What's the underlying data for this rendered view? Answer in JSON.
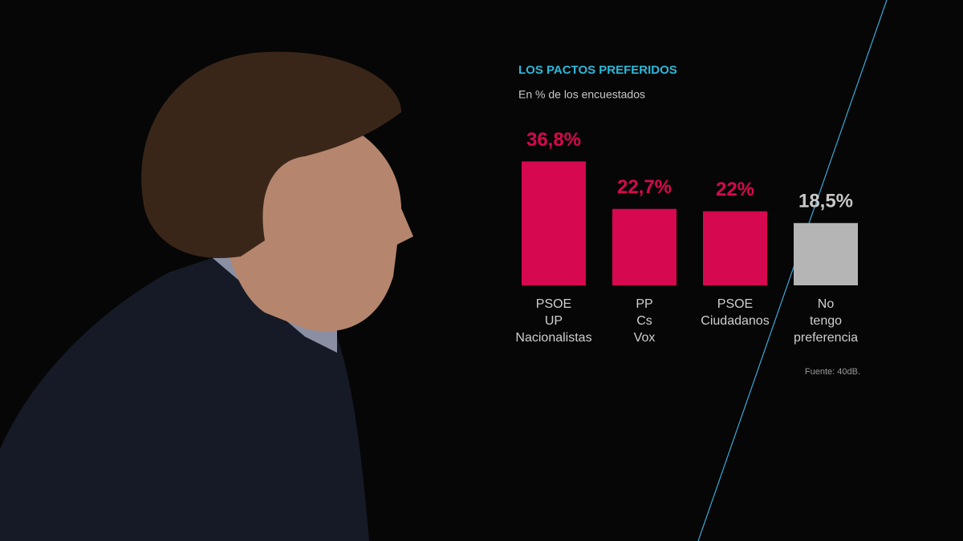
{
  "chart_data": {
    "type": "bar",
    "title": "LOS PACTOS PREFERIDOS",
    "subtitle": "En % de los encuestados",
    "categories": [
      [
        "PSOE",
        "UP",
        "Nacionalistas"
      ],
      [
        "PP",
        "Cs",
        "Vox"
      ],
      [
        "PSOE",
        "Ciudadanos"
      ],
      [
        "No",
        "tengo",
        "preferencia"
      ]
    ],
    "values": [
      36.8,
      22.7,
      22,
      18.5
    ],
    "value_labels": [
      "36,8%",
      "22,7%",
      "22%",
      "18,5%"
    ],
    "colors": [
      "#d6084f",
      "#d6084f",
      "#d6084f",
      "#b5b5b5"
    ],
    "source": "Fuente: 40dB."
  }
}
